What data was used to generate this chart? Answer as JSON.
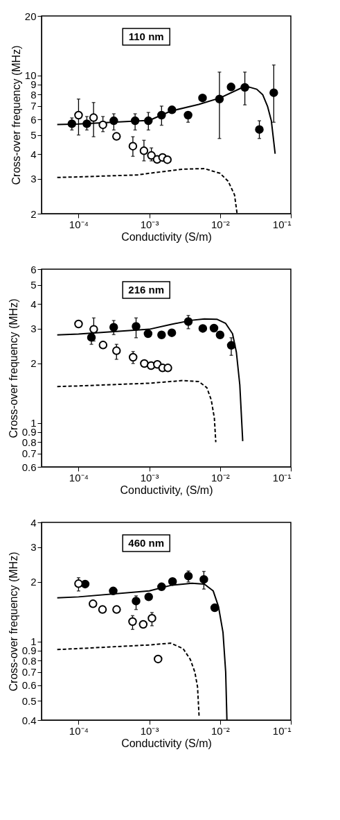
{
  "chart_data": [
    {
      "type": "scatter",
      "xlabel": "Conductivity (S/m)",
      "ylabel": "Cross-over frequency (MHz)",
      "annotations": [
        "110 nm"
      ],
      "log": "xy",
      "grid": false,
      "xlim": [
        3e-05,
        0.1
      ],
      "xticks": [
        {
          "value": 0.0001,
          "label": "10⁻⁴"
        },
        {
          "value": 0.001,
          "label": "10⁻³"
        },
        {
          "value": 0.01,
          "label": "10⁻²"
        },
        {
          "value": 0.1,
          "label": "10⁻¹"
        }
      ],
      "ylim": [
        2,
        20
      ],
      "yticks": [
        2,
        3,
        4,
        5,
        6,
        7,
        8,
        9,
        10,
        20
      ],
      "series": [
        {
          "type": "line",
          "color": "#000000",
          "line_style": "solid",
          "x": [
            5e-05,
            0.0001,
            0.001,
            0.002,
            0.005,
            0.01,
            0.02,
            0.026,
            0.033,
            0.04,
            0.047,
            0.053,
            0.06
          ],
          "values": [
            5.65,
            5.68,
            5.93,
            6.6,
            7.14,
            7.7,
            8.65,
            8.73,
            8.52,
            8.0,
            6.96,
            5.91,
            4.02
          ]
        },
        {
          "type": "line",
          "color": "#000000",
          "line_style": "dashed",
          "x": [
            5e-05,
            0.0001,
            0.00068,
            0.001,
            0.003,
            0.006,
            0.01,
            0.013,
            0.016,
            0.0174
          ],
          "values": [
            3.05,
            3.07,
            3.14,
            3.2,
            3.36,
            3.38,
            3.2,
            2.92,
            2.49,
            2.0
          ]
        },
        {
          "type": "scatter",
          "color": "#000000",
          "marker": "circle",
          "x": [
            8.05e-05,
            0.000131,
            0.000315,
            0.00063,
            0.00097,
            0.00149,
            0.00209,
            0.00353,
            0.00565,
            0.0098,
            0.0143,
            0.0224,
            0.0359,
            0.0574
          ],
          "values": [
            5.7,
            5.7,
            5.9,
            5.9,
            5.9,
            6.3,
            6.7,
            6.3,
            7.7,
            7.6,
            8.75,
            8.7,
            5.33,
            8.18
          ],
          "errors": [
            [
              5.3,
              6.1
            ],
            [
              5.3,
              6.2
            ],
            [
              5.3,
              6.4
            ],
            [
              5.3,
              6.4
            ],
            [
              5.3,
              6.5
            ],
            [
              5.6,
              7.0
            ],
            null,
            [
              5.8,
              6.3
            ],
            null,
            [
              4.8,
              10.4
            ],
            null,
            [
              7.1,
              10.4
            ],
            [
              4.8,
              5.9
            ],
            [
              5.8,
              11.3
            ]
          ]
        },
        {
          "type": "scatter",
          "color": "#ffffff",
          "marker": "circle",
          "x": [
            0.0001,
            0.000163,
            0.000221,
            0.000344,
            0.000586,
            0.00084,
            0.00107,
            0.00129,
            0.00154,
            0.0018
          ],
          "values": [
            6.3,
            6.12,
            5.63,
            4.92,
            4.39,
            4.16,
            3.94,
            3.76,
            3.85,
            3.75
          ],
          "errors": [
            [
              5.0,
              7.6
            ],
            [
              4.9,
              7.3
            ],
            [
              5.2,
              6.2
            ],
            null,
            [
              3.9,
              4.9
            ],
            [
              3.7,
              4.7
            ],
            [
              3.7,
              4.3
            ],
            null,
            null,
            null
          ]
        }
      ]
    },
    {
      "type": "scatter",
      "xlabel": "Conductivity, (S/m)",
      "ylabel": "Cross-over frequency (MHz)",
      "annotations": [
        "216 nm"
      ],
      "log": "xy",
      "grid": false,
      "xlim": [
        3e-05,
        0.1
      ],
      "xticks": [
        {
          "value": 0.0001,
          "label": "10⁻⁴"
        },
        {
          "value": 0.001,
          "label": "10⁻³"
        },
        {
          "value": 0.01,
          "label": "10⁻²"
        },
        {
          "value": 0.1,
          "label": "10⁻¹"
        }
      ],
      "ylim": [
        0.6,
        6
      ],
      "yticks": [
        0.6,
        0.7,
        0.8,
        0.9,
        1,
        2,
        3,
        4,
        5,
        6
      ],
      "series": [
        {
          "type": "line",
          "color": "#000000",
          "line_style": "solid",
          "x": [
            5e-05,
            0.0001,
            0.001,
            0.002,
            0.004,
            0.006,
            0.009,
            0.012,
            0.015,
            0.017,
            0.019,
            0.0209
          ],
          "values": [
            2.79,
            2.82,
            2.98,
            3.15,
            3.31,
            3.36,
            3.35,
            3.19,
            2.83,
            2.28,
            1.56,
            0.81
          ]
        },
        {
          "type": "line",
          "color": "#000000",
          "line_style": "dashed",
          "x": [
            5e-05,
            0.0001,
            0.001,
            0.003,
            0.005,
            0.0065,
            0.0075,
            0.0083,
            0.0087
          ],
          "values": [
            1.53,
            1.54,
            1.59,
            1.64,
            1.62,
            1.51,
            1.31,
            1.06,
            0.8
          ]
        },
        {
          "type": "scatter",
          "color": "#000000",
          "marker": "circle",
          "x": [
            0.000152,
            0.000314,
            0.00065,
            0.00096,
            0.00149,
            0.00208,
            0.00356,
            0.0057,
            0.0082,
            0.01,
            0.0144
          ],
          "values": [
            2.71,
            3.05,
            3.08,
            2.83,
            2.79,
            2.86,
            3.26,
            3.01,
            3.02,
            2.79,
            2.47
          ],
          "errors": [
            [
              2.5,
              3.0
            ],
            [
              2.8,
              3.3
            ],
            [
              2.7,
              3.4
            ],
            null,
            null,
            null,
            [
              3.0,
              3.5
            ],
            null,
            null,
            null,
            [
              2.2,
              2.7
            ]
          ]
        },
        {
          "type": "scatter",
          "color": "#ffffff",
          "marker": "circle",
          "x": [
            0.0001,
            0.000164,
            0.000222,
            0.000344,
            0.00059,
            0.00085,
            0.00106,
            0.0013,
            0.00154,
            0.00183
          ],
          "values": [
            3.17,
            2.98,
            2.48,
            2.32,
            2.15,
            2.0,
            1.95,
            1.98,
            1.9,
            1.9
          ],
          "errors": [
            null,
            [
              2.6,
              3.4
            ],
            null,
            [
              2.1,
              2.5
            ],
            [
              2.0,
              2.3
            ],
            null,
            null,
            null,
            null,
            null
          ]
        }
      ]
    },
    {
      "type": "scatter",
      "xlabel": "Conductivity (S/m)",
      "ylabel": "Cross-over frequency (MHz)",
      "annotations": [
        "460 nm"
      ],
      "log": "xy",
      "grid": false,
      "xlim": [
        3e-05,
        0.1
      ],
      "xticks": [
        {
          "value": 0.0001,
          "label": "10⁻⁴"
        },
        {
          "value": 0.001,
          "label": "10⁻³"
        },
        {
          "value": 0.01,
          "label": "10⁻²"
        },
        {
          "value": 0.1,
          "label": "10⁻¹"
        }
      ],
      "ylim": [
        0.4,
        4
      ],
      "yticks": [
        0.4,
        0.5,
        0.6,
        0.7,
        0.8,
        0.9,
        1,
        2,
        3,
        4
      ],
      "series": [
        {
          "type": "line",
          "color": "#000000",
          "line_style": "solid",
          "x": [
            5e-05,
            0.0001,
            0.001,
            0.002,
            0.004,
            0.006,
            0.008,
            0.0095,
            0.011,
            0.012,
            0.0125
          ],
          "values": [
            1.66,
            1.68,
            1.8,
            1.92,
            1.97,
            1.95,
            1.8,
            1.5,
            1.11,
            0.7,
            0.4
          ]
        },
        {
          "type": "line",
          "color": "#000000",
          "line_style": "dashed",
          "x": [
            5e-05,
            0.0001,
            0.001,
            0.002,
            0.003,
            0.0038,
            0.0044,
            0.0048,
            0.00505
          ],
          "values": [
            0.91,
            0.92,
            0.96,
            0.98,
            0.92,
            0.81,
            0.7,
            0.59,
            0.42
          ]
        },
        {
          "type": "scatter",
          "color": "#000000",
          "marker": "circle",
          "x": [
            0.000124,
            0.000309,
            0.00065,
            0.00098,
            0.00149,
            0.00213,
            0.00357,
            0.0059,
            0.0084
          ],
          "values": [
            1.95,
            1.8,
            1.6,
            1.68,
            1.89,
            2.01,
            2.14,
            2.06,
            1.48
          ],
          "errors": [
            null,
            null,
            [
              1.45,
              1.7
            ],
            null,
            null,
            null,
            [
              2.0,
              2.27
            ],
            [
              1.84,
              2.26
            ],
            null
          ]
        },
        {
          "type": "scatter",
          "color": "#ffffff",
          "marker": "circle",
          "x": [
            0.0001,
            0.00016,
            0.000218,
            0.000345,
            0.00058,
            0.00082,
            0.00109,
            0.00133
          ],
          "values": [
            1.96,
            1.55,
            1.45,
            1.45,
            1.26,
            1.22,
            1.31,
            0.815
          ],
          "errors": [
            [
              1.8,
              2.1
            ],
            null,
            null,
            null,
            [
              1.15,
              1.35
            ],
            null,
            [
              1.2,
              1.4
            ],
            null
          ]
        }
      ]
    }
  ]
}
